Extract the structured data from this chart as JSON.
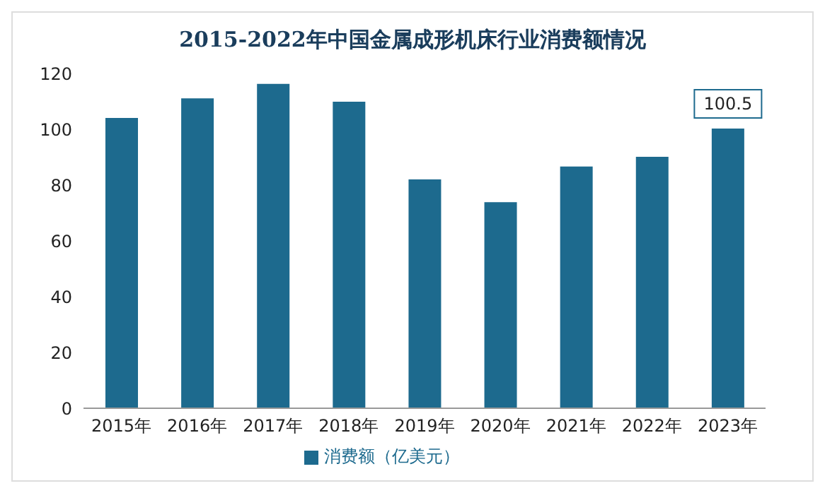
{
  "chart_data": {
    "type": "bar",
    "title": "2015-2022年中国金属成形机床行业消费额情况",
    "categories": [
      "2015年",
      "2016年",
      "2017年",
      "2018年",
      "2019年",
      "2020年",
      "2021年",
      "2022年",
      "2023年"
    ],
    "series": [
      {
        "name": "消费额（亿美元）",
        "color": "#1d6a8e",
        "values": [
          104.3,
          111.3,
          116.5,
          110.1,
          82.3,
          74.1,
          86.9,
          90.4,
          100.5
        ],
        "value_labels": [
          null,
          null,
          null,
          null,
          null,
          null,
          null,
          null,
          "100.5"
        ]
      }
    ],
    "ylim": [
      0,
      120
    ],
    "yticks": [
      0,
      20,
      40,
      60,
      80,
      100,
      120
    ],
    "grid": false,
    "legend": "bottom"
  }
}
